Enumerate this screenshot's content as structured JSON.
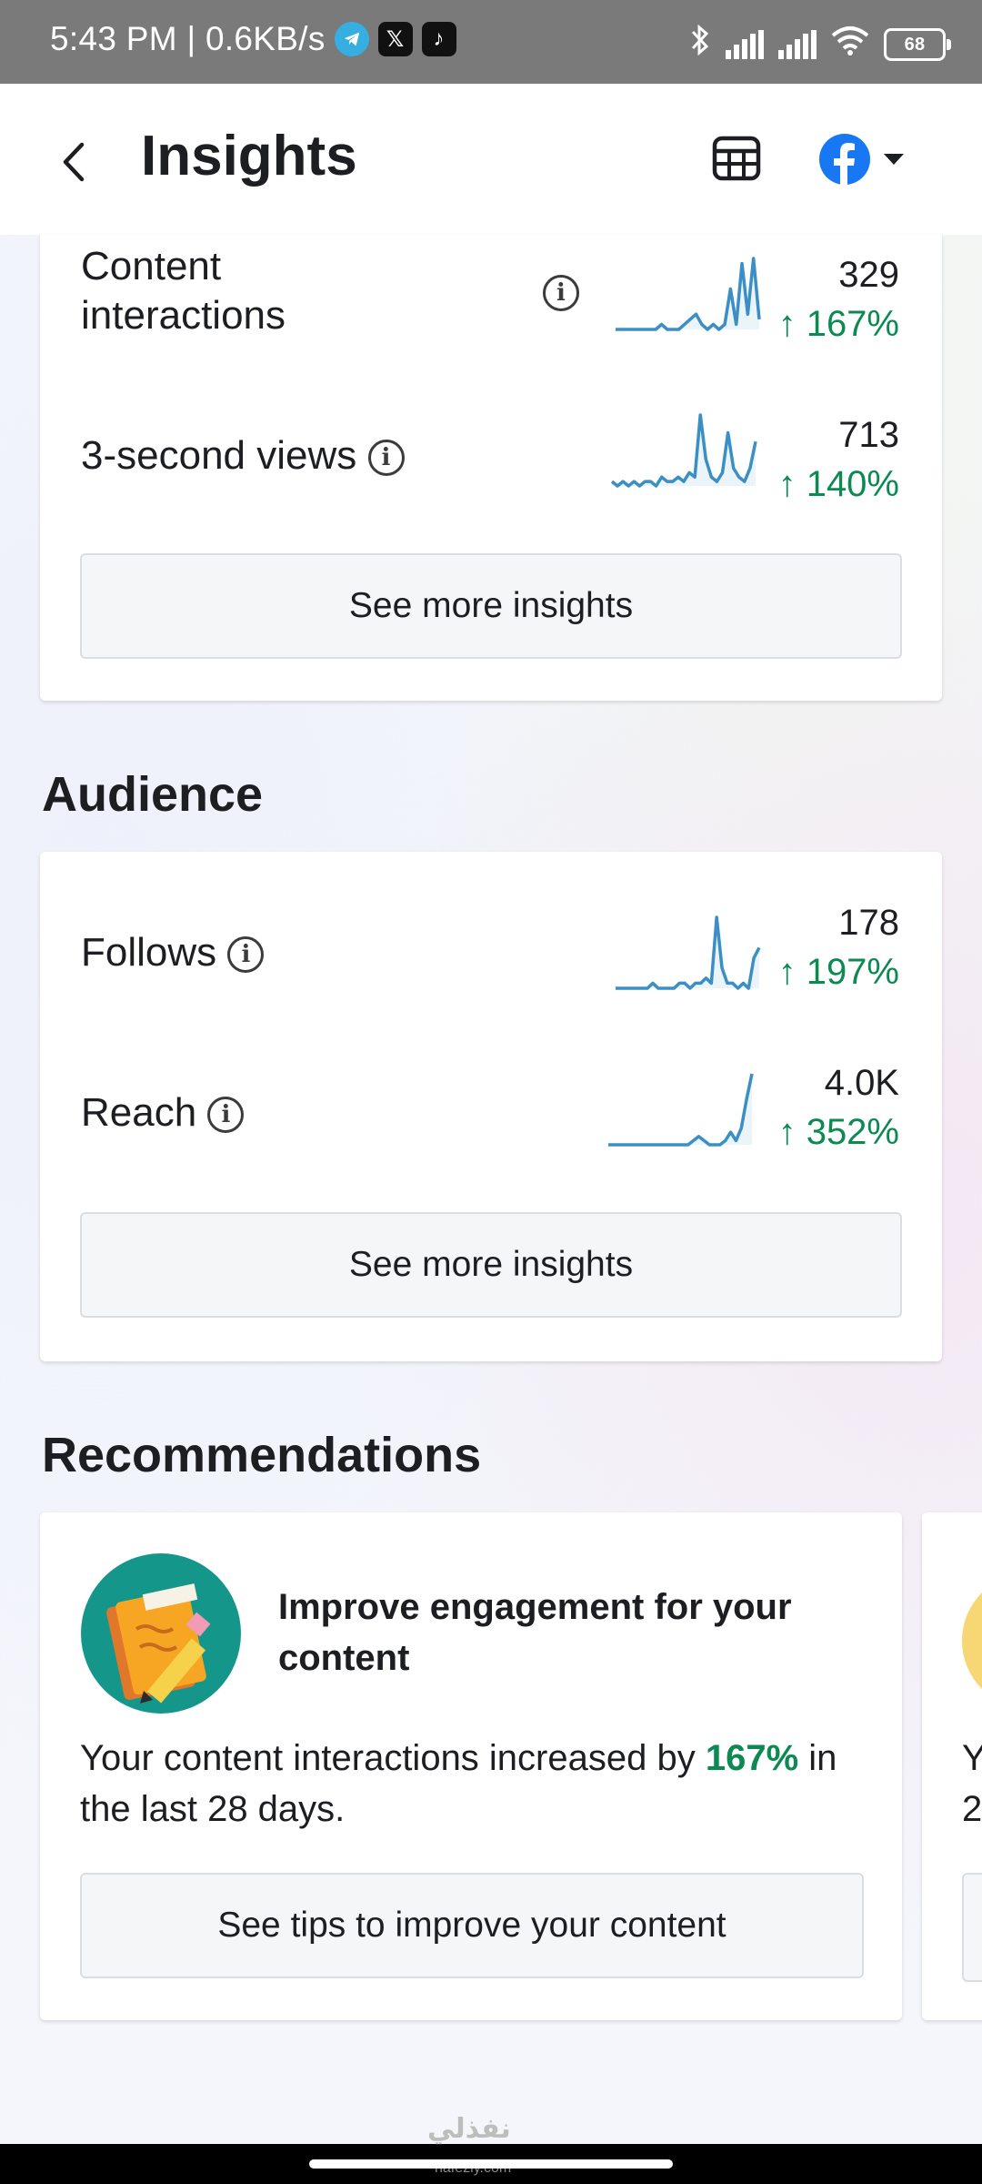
{
  "status_bar": {
    "time_speed": "5:43 PM | 0.6KB/s",
    "battery": "68"
  },
  "header": {
    "title": "Insights"
  },
  "content_section": {
    "metrics": [
      {
        "label_line1": "Content",
        "label_line2": "interactions",
        "value": "329",
        "change": "↑ 167%",
        "spark": [
          2,
          2,
          2,
          2,
          2,
          2,
          2,
          2,
          3,
          2,
          2,
          2,
          3,
          4,
          5,
          3,
          2,
          3,
          2,
          3,
          10,
          3,
          15,
          5,
          16,
          4
        ]
      },
      {
        "label": "3-second views",
        "value": "713",
        "change": "↑ 140%",
        "spark": [
          3,
          2,
          3,
          2,
          3,
          2,
          3,
          3,
          2,
          4,
          3,
          3,
          4,
          3,
          5,
          4,
          18,
          8,
          4,
          3,
          5,
          14,
          6,
          4,
          3,
          6,
          12
        ]
      }
    ],
    "button": "See more insights"
  },
  "audience": {
    "title": "Audience",
    "metrics": [
      {
        "label": "Follows",
        "value": "178",
        "change": "↑ 197%",
        "spark": [
          2,
          2,
          2,
          2,
          2,
          2,
          2,
          3,
          2,
          2,
          2,
          2,
          3,
          3,
          2,
          3,
          3,
          4,
          3,
          16,
          6,
          3,
          3,
          2,
          3,
          2,
          8,
          10
        ]
      },
      {
        "label": "Reach",
        "value": "4.0K",
        "change": "↑ 352%",
        "spark": [
          1,
          1,
          1,
          1,
          1,
          1,
          1,
          1,
          1,
          1,
          1,
          1,
          1,
          1,
          1,
          1,
          2,
          3,
          2,
          1,
          1,
          1,
          2,
          4,
          2,
          5,
          12,
          18
        ]
      }
    ],
    "button": "See more insights"
  },
  "recommendations": {
    "title": "Recommendations",
    "card": {
      "title": "Improve engagement for your content",
      "body_prefix": "Your content interactions increased by",
      "body_highlight": "167%",
      "body_suffix": "in the last 28 days.",
      "button": "See tips to improve your content"
    },
    "next_card_peek": {
      "line1": "Y",
      "line2": "2"
    }
  },
  "watermark": {
    "arabic": "نفذلي",
    "latin": "nafezly.com"
  },
  "colors": {
    "accent_green": "#0d8a52",
    "spark_line": "#3b8fc4",
    "facebook_blue": "#1877f2",
    "status_bar": "#7a7a7a"
  }
}
